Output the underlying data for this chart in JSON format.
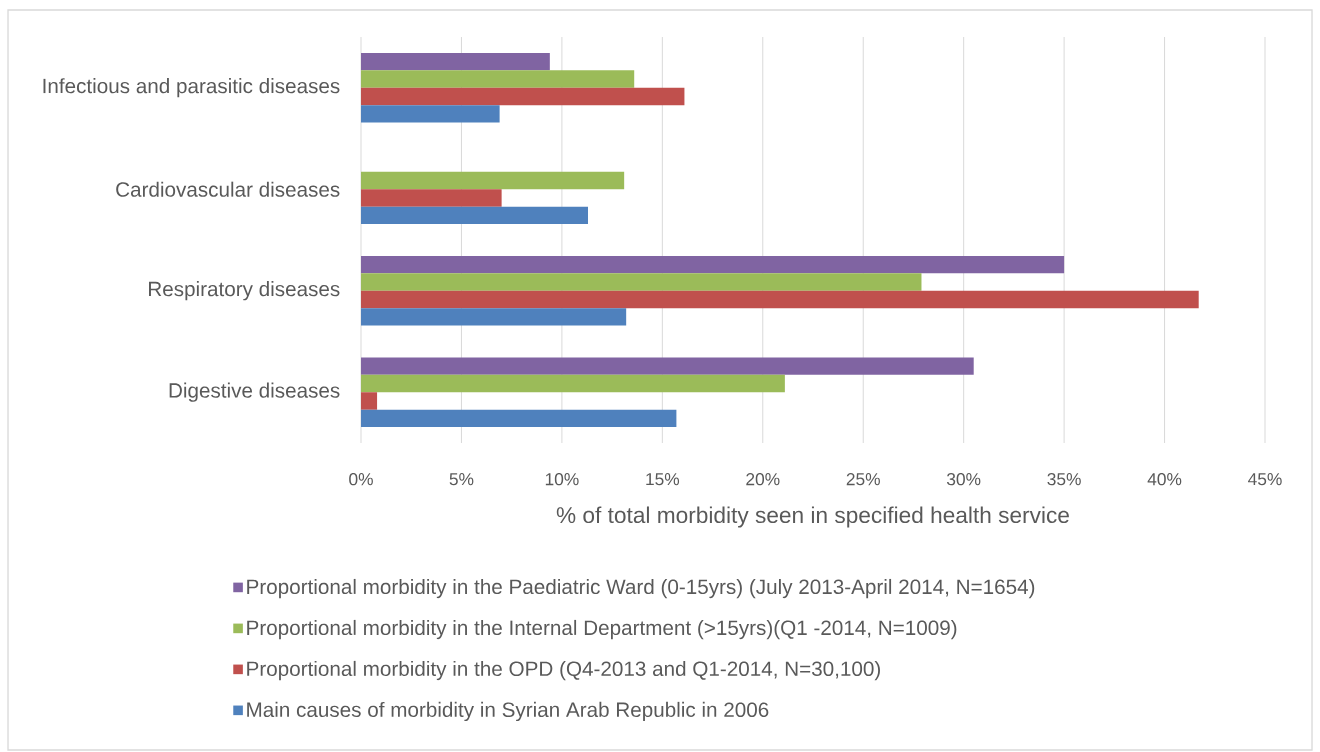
{
  "chart_data": {
    "type": "bar",
    "orientation": "horizontal",
    "categories": [
      "Infectious and parasitic diseases",
      "Cardiovascular diseases",
      "Respiratory diseases",
      "Digestive diseases"
    ],
    "series": [
      {
        "name": "Proportional morbidity in the Paediatric Ward (0-15yrs) (July 2013-April 2014, N=1654)",
        "color": "#8064a2",
        "values": [
          9.4,
          null,
          35.0,
          30.5
        ]
      },
      {
        "name": "Proportional morbidity in the Internal Department (>15yrs)(Q1 -2014, N=1009)",
        "color": "#9bbb59",
        "values": [
          13.6,
          13.1,
          27.9,
          21.1
        ]
      },
      {
        "name": "Proportional morbidity in the OPD (Q4-2013 and Q1-2014, N=30,100)",
        "color": "#c0504d",
        "values": [
          16.1,
          7.0,
          41.7,
          0.8
        ]
      },
      {
        "name": "Main causes of morbidity in Syrian Arab Republic in 2006",
        "color": "#4f81bd",
        "values": [
          6.9,
          11.3,
          13.2,
          15.7
        ]
      }
    ],
    "xlabel": "% of total morbidity seen in specified health service",
    "xlim": [
      0,
      45
    ],
    "xticks": [
      {
        "value": 0,
        "label": "0%"
      },
      {
        "value": 5,
        "label": "5%"
      },
      {
        "value": 10,
        "label": "10%"
      },
      {
        "value": 15,
        "label": "15%"
      },
      {
        "value": 20,
        "label": "20%"
      },
      {
        "value": 25,
        "label": "25%"
      },
      {
        "value": 30,
        "label": "30%"
      },
      {
        "value": 35,
        "label": "35%"
      },
      {
        "value": 40,
        "label": "40%"
      },
      {
        "value": 45,
        "label": "45%"
      }
    ],
    "grid": "x",
    "legend": "bottom"
  }
}
